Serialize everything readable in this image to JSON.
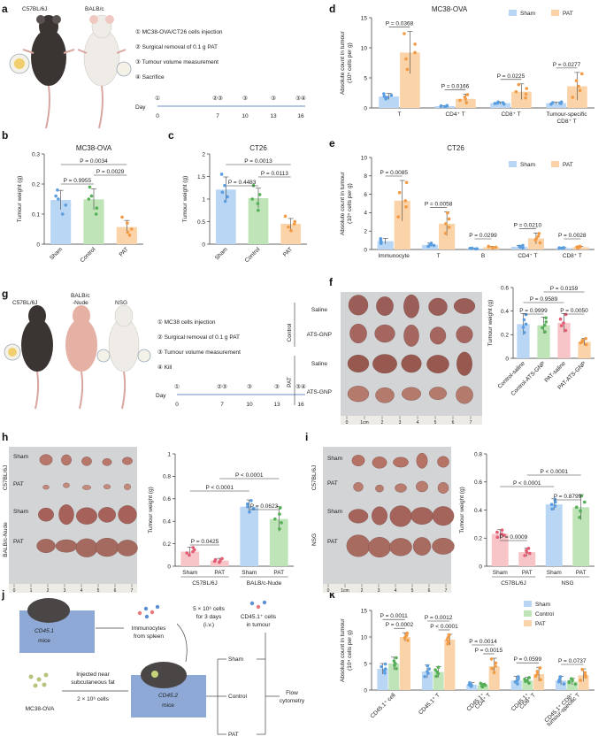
{
  "colors": {
    "sham_fill": "#b9d6f5",
    "sham_dot": "#5b9ee0",
    "control_fill": "#bfe4b7",
    "control_dot": "#55b058",
    "pat_fill": "#fbd3a8",
    "pat_dot": "#f29b45",
    "pink_fill": "#f7c5c7",
    "pink_dot": "#e45c74",
    "photo_bg": "#d2d4d6",
    "mouse_black": "#3a3532",
    "mouse_white": "#efece8",
    "mouse_pink": "#e6b1a5",
    "box_blue": "#8ea9d6"
  },
  "panel_letters": {
    "a": "a",
    "b": "b",
    "c": "c",
    "d": "d",
    "e": "e",
    "f": "f",
    "g": "g",
    "h": "h",
    "i": "i",
    "j": "j",
    "k": "k"
  },
  "panel_a": {
    "mouse1": "C57BL/6J",
    "mouse2": "BALB/c",
    "steps": [
      "① MC38-OVA/CT26 cells injection",
      "② Surgical removal of 0.1 g PAT",
      "③ Tumour volume measurement",
      "④ Sacrifice"
    ],
    "marks": [
      "①",
      "②③",
      "③",
      "③",
      "③④"
    ],
    "day_label": "Day",
    "days": [
      "0",
      "7",
      "10",
      "13",
      "16"
    ]
  },
  "panel_g": {
    "mouse1": "C57BL/6J",
    "mouse2": "BALB/c",
    "mouse2b": "-Nude",
    "mouse3": "NSG",
    "steps": [
      "① MC38 cells injection",
      "② Surgical removal of 0.1 g PAT",
      "③ Tumour volume measurement",
      "④ Kill"
    ],
    "marks": [
      "①",
      "②③",
      "③",
      "③",
      "③④"
    ],
    "day_label": "Day",
    "days": [
      "0",
      "7",
      "10",
      "13",
      "16"
    ]
  },
  "panel_f_labels": {
    "control": "Control",
    "pat": "PAT",
    "saline": "Saline",
    "atsgnp": "ATS-GNP",
    "ruler": [
      "0",
      "1cm",
      "2",
      "3",
      "4",
      "5",
      "6",
      "7"
    ]
  },
  "panel_h_labels": {
    "sham": "Sham",
    "pat": "PAT",
    "c57": "C57BL/6J",
    "nude": "BALB/c-Nude",
    "ruler": [
      "0",
      "1",
      "2",
      "3",
      "4",
      "5",
      "6",
      "7"
    ]
  },
  "panel_i_labels": {
    "sham": "Sham",
    "pat": "PAT",
    "c57": "C57BL/6J",
    "nsg": "NSG",
    "ruler": [
      "0",
      "1cm",
      "2",
      "3",
      "4",
      "5",
      "6",
      "7"
    ]
  },
  "panel_j": {
    "cd451": "CD45.1",
    "mice": "mice",
    "immuno1": "Immunocytes",
    "immuno2": "from spleen",
    "cells1": "5 × 10⁶ cells",
    "cells2": "for 3 days",
    "cells3": "(i.v.)",
    "cd45t1": "CD45.1⁺ cells",
    "cd45t2": "in tumour",
    "inj1": "Injected near",
    "inj2": "subcutaneous fat",
    "inj3": "2 × 10⁶ cells",
    "mc38": "MC38-OVA",
    "cd452": "CD45.2",
    "mice2": "mice",
    "sham": "Sham",
    "control": "Control",
    "pat": "PAT",
    "flow1": "Flow",
    "flow2": "cytometry"
  },
  "chart_data": [
    {
      "id": "b",
      "type": "bar",
      "title": "MC38-OVA",
      "ylabel": "Tumour weight (g)",
      "ylim": [
        0,
        0.3
      ],
      "yticks": [
        0,
        0.1,
        0.2,
        0.3
      ],
      "categories": [
        "Sham",
        "Control",
        "PAT"
      ],
      "values": [
        0.147,
        0.149,
        0.057
      ],
      "errors": [
        0.032,
        0.035,
        0.022
      ],
      "points": [
        [
          0.1,
          0.13,
          0.15,
          0.16,
          0.18
        ],
        [
          0.1,
          0.12,
          0.15,
          0.16,
          0.19
        ],
        [
          0.03,
          0.04,
          0.05,
          0.07,
          0.09
        ]
      ],
      "comparisons": [
        {
          "label": "P = 0.9955",
          "from": 0,
          "to": 1
        },
        {
          "label": "P = 0.0029",
          "from": 1,
          "to": 2
        },
        {
          "label": "P = 0.0034",
          "from": 0,
          "to": 2
        }
      ]
    },
    {
      "id": "c",
      "type": "bar",
      "title": "CT26",
      "ylabel": "Tumour weight (g)",
      "ylim": [
        0,
        2.0
      ],
      "yticks": [
        0,
        0.5,
        1.0,
        1.5,
        2.0
      ],
      "categories": [
        "Sham",
        "Control",
        "PAT"
      ],
      "values": [
        1.21,
        1.02,
        0.45
      ],
      "errors": [
        0.28,
        0.22,
        0.12
      ],
      "points": [
        [
          0.95,
          1.05,
          1.15,
          1.3,
          1.55
        ],
        [
          0.75,
          0.9,
          1.0,
          1.1,
          1.3
        ],
        [
          0.3,
          0.38,
          0.45,
          0.5,
          0.62
        ]
      ],
      "comparisons": [
        {
          "label": "P = 0.4483",
          "from": 0,
          "to": 1
        },
        {
          "label": "P = 0.0113",
          "from": 1,
          "to": 2
        },
        {
          "label": "P = 0.0013",
          "from": 0,
          "to": 2
        }
      ]
    },
    {
      "id": "d",
      "type": "bar",
      "title": "MC38-OVA",
      "ylabel": "Absolute count in tumour (10⁵ cells per g)",
      "ylim": [
        0,
        15
      ],
      "yticks": [
        0,
        5,
        10,
        15
      ],
      "legend": [
        "Sham",
        "PAT"
      ],
      "categories": [
        "T",
        "CD4⁺ T",
        "CD8⁺ T",
        "Tumour-specific CD8⁺ T"
      ],
      "series": [
        {
          "name": "Sham",
          "values": [
            1.9,
            0.3,
            0.8,
            0.8
          ],
          "errors": [
            0.5,
            0.1,
            0.2,
            0.2
          ]
        },
        {
          "name": "PAT",
          "values": [
            9.2,
            1.5,
            2.7,
            3.6
          ],
          "errors": [
            3.5,
            0.8,
            1.3,
            2.3
          ]
        }
      ],
      "pvalues": [
        "P = 0.0368",
        "P = 0.0166",
        "P = 0.0225",
        "P = 0.0277"
      ]
    },
    {
      "id": "e",
      "type": "bar",
      "title": "CT26",
      "ylabel": "Absolute count in tumour (10⁵ cells per g)",
      "ylim": [
        0,
        10
      ],
      "yticks": [
        0,
        2,
        4,
        6,
        8,
        10
      ],
      "legend": [
        "Sham",
        "PAT"
      ],
      "categories": [
        "Immunocyte",
        "T",
        "B",
        "CD4⁺ T",
        "CD8⁺ T"
      ],
      "series": [
        {
          "name": "Sham",
          "values": [
            0.9,
            0.5,
            0.1,
            0.3,
            0.15
          ],
          "errors": [
            0.3,
            0.2,
            0.05,
            0.15,
            0.05
          ]
        },
        {
          "name": "PAT",
          "values": [
            5.3,
            2.8,
            0.25,
            1.2,
            0.25
          ],
          "errors": [
            2.2,
            1.3,
            0.1,
            0.6,
            0.1
          ]
        }
      ],
      "pvalues": [
        "P = 0.0085",
        "P = 0.0058",
        "P = 0.0299",
        "P = 0.0210",
        "P = 0.0028"
      ]
    },
    {
      "id": "f",
      "type": "bar",
      "ylabel": "Tumour weight (g)",
      "ylim": [
        0,
        0.6
      ],
      "yticks": [
        0,
        0.2,
        0.4,
        0.6
      ],
      "categories": [
        "Control-saline",
        "Control-ATS-GNP",
        "PAT-saline",
        "PAT-ATS-GNP"
      ],
      "values": [
        0.29,
        0.28,
        0.3,
        0.14
      ],
      "errors": [
        0.09,
        0.07,
        0.08,
        0.03
      ],
      "comparisons": [
        {
          "label": "P = 0.9999",
          "from": 0,
          "to": 1
        },
        {
          "label": "P = 0.0050",
          "from": 2,
          "to": 3
        },
        {
          "label": "P = 0.9589",
          "from": 0,
          "to": 2
        },
        {
          "label": "P = 0.0159",
          "from": 1,
          "to": 3
        }
      ]
    },
    {
      "id": "h",
      "type": "bar",
      "ylabel": "Tumour weight (g)",
      "ylim": [
        0,
        1.0
      ],
      "yticks": [
        0,
        0.2,
        0.4,
        0.6,
        0.8,
        1.0
      ],
      "categories": [
        "Sham",
        "PAT",
        "Sham",
        "PAT"
      ],
      "groups": [
        "C57BL/6J",
        "BALB/c-Nude"
      ],
      "values": [
        0.13,
        0.05,
        0.53,
        0.42
      ],
      "errors": [
        0.04,
        0.02,
        0.06,
        0.11
      ],
      "comparisons": [
        {
          "label": "P = 0.0425",
          "from": 0,
          "to": 1
        },
        {
          "label": "P = 0.0623",
          "from": 2,
          "to": 3
        },
        {
          "label": "P < 0.0001",
          "from": 0,
          "to": 2
        },
        {
          "label": "P < 0.0001",
          "from": 1,
          "to": 3
        }
      ]
    },
    {
      "id": "i",
      "type": "bar",
      "ylabel": "Tumour weight (g)",
      "ylim": [
        0,
        0.8
      ],
      "yticks": [
        0,
        0.2,
        0.4,
        0.6,
        0.8
      ],
      "categories": [
        "Sham",
        "PAT",
        "Sham",
        "PAT"
      ],
      "groups": [
        "C57BL/6J",
        "NSG"
      ],
      "values": [
        0.23,
        0.1,
        0.44,
        0.42
      ],
      "errors": [
        0.03,
        0.03,
        0.04,
        0.09
      ],
      "comparisons": [
        {
          "label": "P = 0.0009",
          "from": 0,
          "to": 1
        },
        {
          "label": "P = 0.8799",
          "from": 2,
          "to": 3
        },
        {
          "label": "P < 0.0001",
          "from": 0,
          "to": 2
        },
        {
          "label": "P < 0.0001",
          "from": 1,
          "to": 3
        }
      ]
    },
    {
      "id": "k",
      "type": "bar",
      "ylabel": "Absolute count in tumour (10⁴ cells per g)",
      "ylim": [
        0,
        15
      ],
      "yticks": [
        0,
        5,
        10,
        15
      ],
      "legend": [
        "Sham",
        "Control",
        "PAT"
      ],
      "categories": [
        "CD45.1⁺ cell",
        "CD45.1⁺ T",
        "CD45.1⁺ CD4⁺ T",
        "CD45.1⁺ CD8⁺ T",
        "CD45.1⁺ CD8⁺ tumour-specific T"
      ],
      "series": [
        {
          "name": "Sham",
          "values": [
            4.0,
            3.5,
            1.0,
            1.8,
            1.8
          ],
          "errors": [
            1.0,
            1.2,
            0.4,
            0.8,
            0.8
          ]
        },
        {
          "name": "Control",
          "values": [
            5.0,
            3.4,
            0.9,
            1.8,
            1.6
          ],
          "errors": [
            1.2,
            1.0,
            0.4,
            0.6,
            0.6
          ]
        },
        {
          "name": "PAT",
          "values": [
            10.0,
            9.5,
            4.5,
            3.0,
            2.8
          ],
          "errors": [
            0.8,
            1.0,
            1.5,
            1.3,
            1.2
          ]
        }
      ],
      "comparisons": [
        {
          "group": 0,
          "labels": [
            "P = 0.0011",
            "P = 0.0002"
          ]
        },
        {
          "group": 1,
          "labels": [
            "P = 0.0012",
            "P < 0.0001"
          ]
        },
        {
          "group": 2,
          "labels": [
            "P = 0.0014",
            "P = 0.0015"
          ]
        },
        {
          "group": 3,
          "labels": [
            "P = 0.0599"
          ]
        },
        {
          "group": 4,
          "labels": [
            "P = 0.0737"
          ]
        }
      ]
    }
  ]
}
